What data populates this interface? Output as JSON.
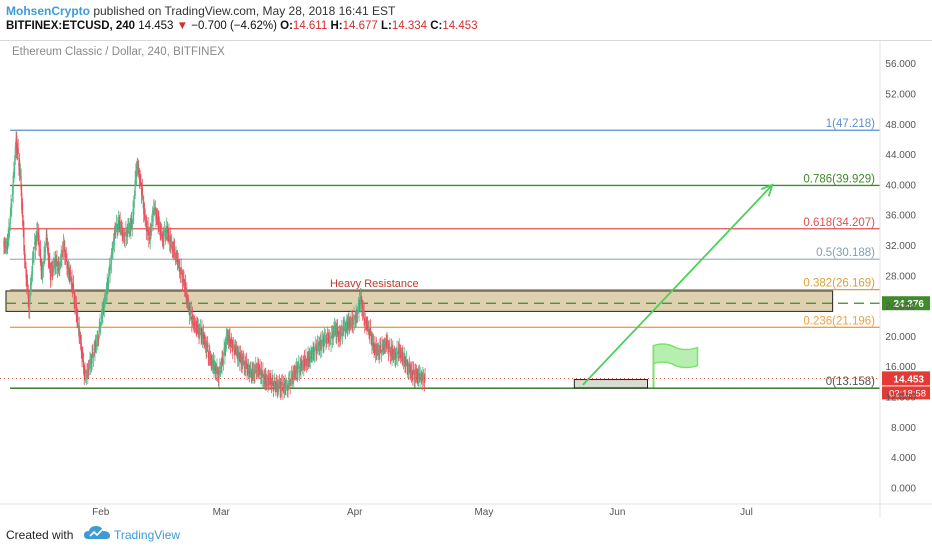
{
  "header": {
    "author": "MohsenCrypto",
    "published_text": " published on TradingView.com, May 28, 2018 16:41 EST",
    "symbol": "BITFINEX:ETCUSD, 240",
    "last": "14.453",
    "change_arrow": "▼",
    "change": "−0.700 (−4.62%)",
    "open_label": "O:",
    "open": "14.611",
    "high_label": "H:",
    "high": "14.677",
    "low_label": "L:",
    "low": "14.334",
    "close_label": "C:",
    "close": "14.453"
  },
  "footer": {
    "created_with": "Created with",
    "brand": "TradingView"
  },
  "chart_data": {
    "type": "candlestick",
    "title": "Ethereum Classic / Dollar, 240, BITFINEX",
    "y_ticks": [
      "56.000",
      "52.000",
      "48.000",
      "44.000",
      "40.000",
      "36.000",
      "32.000",
      "28.000",
      "24.000",
      "20.000",
      "16.000",
      "12.000",
      "8.000",
      "4.000",
      "0.000"
    ],
    "y_values": [
      56,
      52,
      48,
      44,
      40,
      36,
      32,
      28,
      24,
      20,
      16,
      12,
      8,
      4,
      0
    ],
    "ylim": [
      -2,
      59
    ],
    "x_ticks": [
      {
        "label": "Feb",
        "day": 31
      },
      {
        "label": "Mar",
        "day": 59
      },
      {
        "label": "Apr",
        "day": 90
      },
      {
        "label": "May",
        "day": 120
      },
      {
        "label": "Jun",
        "day": 151
      },
      {
        "label": "Jul",
        "day": 181
      }
    ],
    "xlim": [
      9,
      212
    ],
    "fib_levels": [
      {
        "ratio_label": "1",
        "value_label": "47.218",
        "value": 47.218,
        "color": "#5b8fd0",
        "text_color": "#5b8fd0"
      },
      {
        "ratio_label": "0.786",
        "value_label": "39.929",
        "value": 39.929,
        "color": "#3f8a2a",
        "text_color": "#3f8a2a"
      },
      {
        "ratio_label": "0.618",
        "value_label": "34.207",
        "value": 34.207,
        "color": "#e05050",
        "text_color": "#e05050"
      },
      {
        "ratio_label": "0.5",
        "value_label": "30.188",
        "value": 30.188,
        "color": "#9fb2c2",
        "text_color": "#7f9fb5"
      },
      {
        "ratio_label": "0.382",
        "value_label": "26.169",
        "value": 26.169,
        "color": "#d9a13a",
        "text_color": "#d9a13a"
      },
      {
        "ratio_label": "0.236",
        "value_label": "21.196",
        "value": 21.196,
        "color": "#f0a040",
        "text_color": "#f0a040"
      },
      {
        "ratio_label": "0",
        "value_label": "13.158",
        "value": 13.158,
        "color": "#2f6b1e",
        "text_color": "#555555"
      }
    ],
    "resistance_zone": {
      "label": "Heavy Resistance",
      "top": 26.0,
      "bottom": 23.3,
      "mid": 24.376,
      "mid_label": "24.376",
      "day_start": 9,
      "day_end": 201
    },
    "support_box": {
      "top": 14.3,
      "bottom": 13.2,
      "day_start": 141,
      "day_end": 158
    },
    "arrow": {
      "from_day": 143,
      "from_value": 13.6,
      "to_day": 187,
      "to_value": 40.0
    },
    "price_tag": {
      "value": 14.453,
      "label": "14.453",
      "timer": "02:18:58"
    },
    "series": [
      {
        "name": "ETCUSD",
        "points": [
          {
            "day": 9,
            "close": 32
          },
          {
            "day": 10,
            "close": 38
          },
          {
            "day": 11,
            "close": 46
          },
          {
            "day": 12,
            "close": 41
          },
          {
            "day": 13,
            "close": 30
          },
          {
            "day": 14,
            "close": 24
          },
          {
            "day": 15,
            "close": 31
          },
          {
            "day": 16,
            "close": 34
          },
          {
            "day": 17,
            "close": 28
          },
          {
            "day": 18,
            "close": 33
          },
          {
            "day": 19,
            "close": 28
          },
          {
            "day": 20,
            "close": 30
          },
          {
            "day": 21,
            "close": 29
          },
          {
            "day": 22,
            "close": 32
          },
          {
            "day": 23,
            "close": 29
          },
          {
            "day": 24,
            "close": 27
          },
          {
            "day": 25,
            "close": 23
          },
          {
            "day": 26,
            "close": 19
          },
          {
            "day": 27,
            "close": 14.5
          },
          {
            "day": 28,
            "close": 16
          },
          {
            "day": 29,
            "close": 18
          },
          {
            "day": 30,
            "close": 20
          },
          {
            "day": 31,
            "close": 23
          },
          {
            "day": 32,
            "close": 26
          },
          {
            "day": 33,
            "close": 30
          },
          {
            "day": 34,
            "close": 34
          },
          {
            "day": 35,
            "close": 35
          },
          {
            "day": 36,
            "close": 33
          },
          {
            "day": 37,
            "close": 34
          },
          {
            "day": 38,
            "close": 35
          },
          {
            "day": 39,
            "close": 43
          },
          {
            "day": 40,
            "close": 40
          },
          {
            "day": 41,
            "close": 35
          },
          {
            "day": 42,
            "close": 33
          },
          {
            "day": 43,
            "close": 37
          },
          {
            "day": 44,
            "close": 35
          },
          {
            "day": 45,
            "close": 33
          },
          {
            "day": 46,
            "close": 34
          },
          {
            "day": 47,
            "close": 32
          },
          {
            "day": 48,
            "close": 31
          },
          {
            "day": 49,
            "close": 29
          },
          {
            "day": 50,
            "close": 27
          },
          {
            "day": 51,
            "close": 24
          },
          {
            "day": 52,
            "close": 22
          },
          {
            "day": 53,
            "close": 21
          },
          {
            "day": 54,
            "close": 20.5
          },
          {
            "day": 55,
            "close": 19
          },
          {
            "day": 56,
            "close": 17
          },
          {
            "day": 57,
            "close": 16
          },
          {
            "day": 58,
            "close": 15
          },
          {
            "day": 59,
            "close": 17
          },
          {
            "day": 60,
            "close": 20
          },
          {
            "day": 61,
            "close": 19
          },
          {
            "day": 62,
            "close": 18
          },
          {
            "day": 63,
            "close": 17
          },
          {
            "day": 64,
            "close": 16.5
          },
          {
            "day": 65,
            "close": 15.5
          },
          {
            "day": 66,
            "close": 15
          },
          {
            "day": 67,
            "close": 16
          },
          {
            "day": 68,
            "close": 15
          },
          {
            "day": 69,
            "close": 14
          },
          {
            "day": 70,
            "close": 14.3
          },
          {
            "day": 71,
            "close": 13.5
          },
          {
            "day": 72,
            "close": 13.3
          },
          {
            "day": 73,
            "close": 13.4
          },
          {
            "day": 74,
            "close": 13.5
          },
          {
            "day": 75,
            "close": 14.5
          },
          {
            "day": 76,
            "close": 15.5
          },
          {
            "day": 77,
            "close": 16
          },
          {
            "day": 78,
            "close": 16.5
          },
          {
            "day": 79,
            "close": 17
          },
          {
            "day": 80,
            "close": 18
          },
          {
            "day": 81,
            "close": 18.5
          },
          {
            "day": 82,
            "close": 19
          },
          {
            "day": 83,
            "close": 20
          },
          {
            "day": 84,
            "close": 19.5
          },
          {
            "day": 85,
            "close": 21
          },
          {
            "day": 86,
            "close": 20
          },
          {
            "day": 87,
            "close": 21
          },
          {
            "day": 88,
            "close": 21.5
          },
          {
            "day": 89,
            "close": 22
          },
          {
            "day": 90,
            "close": 22.5
          },
          {
            "day": 91,
            "close": 25
          },
          {
            "day": 92,
            "close": 22
          },
          {
            "day": 93,
            "close": 21
          },
          {
            "day": 94,
            "close": 18.5
          },
          {
            "day": 95,
            "close": 18
          },
          {
            "day": 96,
            "close": 18.5
          },
          {
            "day": 97,
            "close": 19
          },
          {
            "day": 98,
            "close": 18
          },
          {
            "day": 99,
            "close": 17.5
          },
          {
            "day": 100,
            "close": 18
          },
          {
            "day": 101,
            "close": 17
          },
          {
            "day": 102,
            "close": 16
          },
          {
            "day": 103,
            "close": 15
          },
          {
            "day": 104,
            "close": 14.8
          },
          {
            "day": 105,
            "close": 14.6
          },
          {
            "day": 106,
            "close": 14.4
          }
        ]
      }
    ]
  }
}
